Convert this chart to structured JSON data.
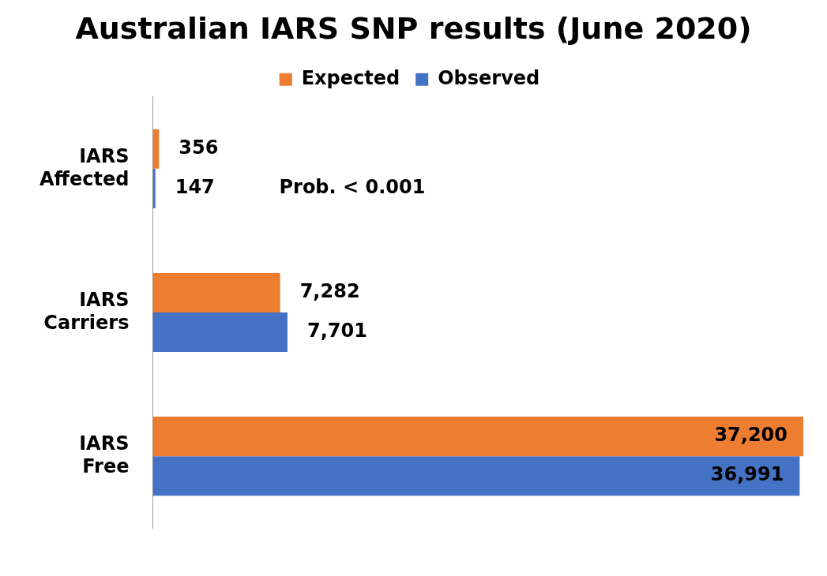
{
  "chart_data": {
    "type": "bar",
    "orientation": "horizontal",
    "title": "Australian IARS SNP results (June 2020)",
    "categories": [
      "IARS Affected",
      "IARS Carriers",
      "IARS Free"
    ],
    "series": [
      {
        "name": "Expected",
        "color": "#ed7d31",
        "values": [
          356,
          7282,
          37200
        ],
        "value_labels": [
          "356",
          "7,282",
          "37,200"
        ]
      },
      {
        "name": "Observed",
        "color": "#4472c4",
        "values": [
          147,
          7701,
          36991
        ],
        "value_labels": [
          "147",
          "7,701",
          "36,991"
        ]
      }
    ],
    "annotations": [
      "Prob. < 0.001"
    ],
    "legend": "top",
    "grid": false,
    "tick_labels": "y"
  }
}
